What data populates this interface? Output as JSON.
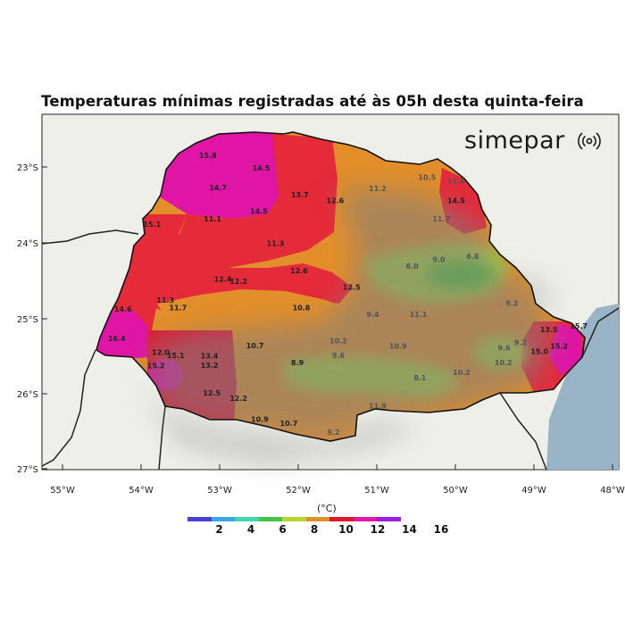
{
  "title": "Temperaturas mínimas registradas até às 05h desta quinta-feira",
  "logo": {
    "text": "simepar",
    "icon": "radio-wave-icon"
  },
  "axes": {
    "lat_labels": [
      "23°S",
      "24°S",
      "25°S",
      "26°S",
      "27°S"
    ],
    "lon_labels": [
      "55°W",
      "54°W",
      "53°W",
      "52°W",
      "51°W",
      "50°W",
      "49°W",
      "48°W"
    ]
  },
  "colorbar": {
    "unit": "(°C)",
    "colors": [
      "#4a3fd4",
      "#3aa6e6",
      "#3fd9b0",
      "#45c24a",
      "#b8d62e",
      "#e0922a",
      "#e0172a",
      "#e01aa8",
      "#9b1ee0"
    ],
    "ticks": [
      "2",
      "4",
      "6",
      "8",
      "10",
      "12",
      "14",
      "16"
    ]
  },
  "colors": {
    "land": "#efefe9",
    "ocean": "#99b3c7",
    "magenta": "#e015a5",
    "red": "#e52a3a",
    "orange": "#e28e2a",
    "green": "#a8cf3a",
    "gray": "#8b8b8b"
  },
  "stations": [
    {
      "v": "15.8",
      "lon": -53.15,
      "lat": -22.88
    },
    {
      "v": "14.5",
      "lon": -52.47,
      "lat": -23.05
    },
    {
      "v": "14.7",
      "lon": -53.02,
      "lat": -23.31
    },
    {
      "v": "13.7",
      "lon": -51.98,
      "lat": -23.4
    },
    {
      "v": "12.6",
      "lon": -51.53,
      "lat": -23.48
    },
    {
      "v": "11.2",
      "lon": -50.99,
      "lat": -23.32
    },
    {
      "v": "10.5",
      "lon": -50.36,
      "lat": -23.17
    },
    {
      "v": "11.8",
      "lon": -49.99,
      "lat": -23.22
    },
    {
      "v": "14.5",
      "lon": -49.99,
      "lat": -23.48
    },
    {
      "v": "11.7",
      "lon": -50.18,
      "lat": -23.72
    },
    {
      "v": "14.5",
      "lon": -52.5,
      "lat": -23.62
    },
    {
      "v": "15.1",
      "lon": -53.86,
      "lat": -23.79
    },
    {
      "v": "11.1",
      "lon": -53.09,
      "lat": -23.72
    },
    {
      "v": "11.3",
      "lon": -52.29,
      "lat": -24.05
    },
    {
      "v": "8.0",
      "lon": -50.55,
      "lat": -24.35
    },
    {
      "v": "9.0",
      "lon": -50.21,
      "lat": -24.26
    },
    {
      "v": "6.8",
      "lon": -49.78,
      "lat": -24.22
    },
    {
      "v": "12.6",
      "lon": -51.99,
      "lat": -24.41
    },
    {
      "v": "12.4",
      "lon": -52.96,
      "lat": -24.52
    },
    {
      "v": "12.2",
      "lon": -52.76,
      "lat": -24.55
    },
    {
      "v": "12.5",
      "lon": -51.32,
      "lat": -24.63
    },
    {
      "v": "11.3",
      "lon": -53.69,
      "lat": -24.8
    },
    {
      "v": "11.7",
      "lon": -53.53,
      "lat": -24.9
    },
    {
      "v": "10.8",
      "lon": -51.96,
      "lat": -24.9
    },
    {
      "v": "9.2",
      "lon": -49.28,
      "lat": -24.84
    },
    {
      "v": "14.6",
      "lon": -54.23,
      "lat": -24.92
    },
    {
      "v": "9.4",
      "lon": -51.05,
      "lat": -24.99
    },
    {
      "v": "11.1",
      "lon": -50.47,
      "lat": -24.99
    },
    {
      "v": "13.5",
      "lon": -48.81,
      "lat": -25.19
    },
    {
      "v": "15.7",
      "lon": -48.43,
      "lat": -25.14
    },
    {
      "v": "16.4",
      "lon": -54.31,
      "lat": -25.31
    },
    {
      "v": "10.2",
      "lon": -51.49,
      "lat": -25.34
    },
    {
      "v": "10.7",
      "lon": -52.55,
      "lat": -25.4
    },
    {
      "v": "10.9",
      "lon": -50.73,
      "lat": -25.41
    },
    {
      "v": "9.2",
      "lon": -49.17,
      "lat": -25.36
    },
    {
      "v": "9.6",
      "lon": -49.38,
      "lat": -25.43
    },
    {
      "v": "15.2",
      "lon": -48.68,
      "lat": -25.41
    },
    {
      "v": "15.0",
      "lon": -48.93,
      "lat": -25.48
    },
    {
      "v": "12.0",
      "lon": -53.75,
      "lat": -25.49
    },
    {
      "v": "15.1",
      "lon": -53.56,
      "lat": -25.53
    },
    {
      "v": "13.4",
      "lon": -53.13,
      "lat": -25.54
    },
    {
      "v": "9.6",
      "lon": -51.49,
      "lat": -25.53
    },
    {
      "v": "8.9",
      "lon": -52.01,
      "lat": -25.63
    },
    {
      "v": "13.2",
      "lon": -53.13,
      "lat": -25.66
    },
    {
      "v": "15.2",
      "lon": -53.81,
      "lat": -25.67
    },
    {
      "v": "10.2",
      "lon": -49.39,
      "lat": -25.63
    },
    {
      "v": "10.2",
      "lon": -49.92,
      "lat": -25.76
    },
    {
      "v": "8.1",
      "lon": -50.45,
      "lat": -25.83
    },
    {
      "v": "12.5",
      "lon": -53.1,
      "lat": -26.03
    },
    {
      "v": "12.2",
      "lon": -52.76,
      "lat": -26.1
    },
    {
      "v": "11.9",
      "lon": -50.99,
      "lat": -26.2
    },
    {
      "v": "10.9",
      "lon": -52.49,
      "lat": -26.38
    },
    {
      "v": "10.7",
      "lon": -52.12,
      "lat": -26.43
    },
    {
      "v": "9.2",
      "lon": -51.55,
      "lat": -26.55
    }
  ]
}
